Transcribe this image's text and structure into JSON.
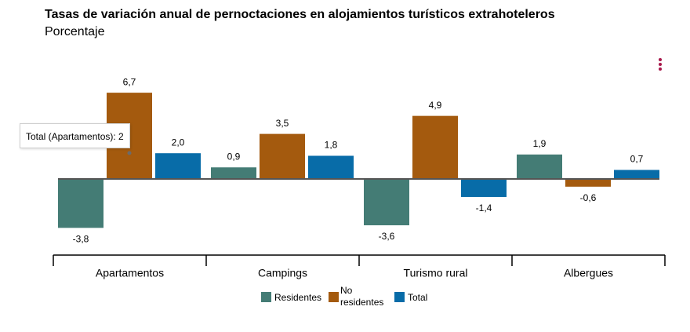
{
  "title": "Tasas de variación anual de pernoctaciones en alojamientos turísticos extrahoteleros",
  "subtitle": "Porcentaje",
  "menu_icon": "vertical-dots-icon",
  "tooltip": "Total (Apartamentos): 2",
  "chart_data": {
    "type": "bar",
    "categories": [
      "Apartamentos",
      "Campings",
      "Turismo rural",
      "Albergues"
    ],
    "series": [
      {
        "name": "Residentes",
        "color": "#447c75",
        "values": [
          -3.8,
          0.9,
          -3.6,
          1.9
        ],
        "labels": [
          "-3,8",
          "0,9",
          "-3,6",
          "1,9"
        ]
      },
      {
        "name": "No residentes",
        "color": "#a45a0e",
        "values": [
          6.7,
          3.5,
          4.9,
          -0.6
        ],
        "labels": [
          "6,7",
          "3,5",
          "4,9",
          "-0,6"
        ]
      },
      {
        "name": "Total",
        "color": "#086ca8",
        "values": [
          2.0,
          1.8,
          -1.4,
          0.7
        ],
        "labels": [
          "2,0",
          "1,8",
          "-1,4",
          "0,7"
        ]
      }
    ],
    "title": "Tasas de variación anual de pernoctaciones en alojamientos turísticos extrahoteleros",
    "subtitle": "Porcentaje",
    "ylim": [
      -3.8,
      6.7
    ],
    "grid": false,
    "legend_position": "bottom-center"
  }
}
